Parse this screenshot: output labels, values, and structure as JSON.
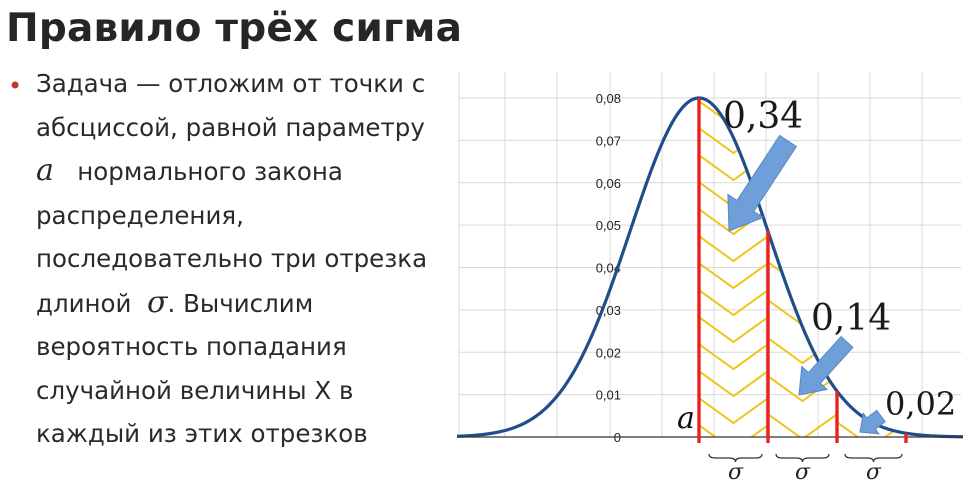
{
  "title": "Правило трёх сигма",
  "bullet": {
    "line1": "Задача — отложим от точки с",
    "line2": "абсциссой, равной параметру",
    "param_symbol": "a",
    "line3_rest": "нормального закона",
    "line4": "распределения,",
    "line5": "последовательно три отрезка",
    "line6_before": "длиной",
    "sigma_symbol": "σ",
    "line6_after": ". Вычислим",
    "line7": "вероятность попадания",
    "line8": "случайной величины X в",
    "line9": "каждый из этих отрезков"
  },
  "chart_data": {
    "type": "area",
    "y_tick_labels": [
      "0",
      "0,01",
      "0,02",
      "0,03",
      "0,04",
      "0,05",
      "0,06",
      "0,07",
      "0,08"
    ],
    "ylim": [
      0,
      0.08
    ],
    "grid": true,
    "mean_label": "a",
    "segment_label": "σ",
    "annotations": [
      {
        "segment": 1,
        "text": "0,34"
      },
      {
        "segment": 2,
        "text": "0,14"
      },
      {
        "segment": 3,
        "text": "0,02"
      }
    ],
    "colors": {
      "curve": "#1f4e8c",
      "boundary": "#e8231d",
      "hatch": "#f2c417",
      "arrow": "#6f9fd8",
      "grid": "#d9d9d9"
    }
  }
}
